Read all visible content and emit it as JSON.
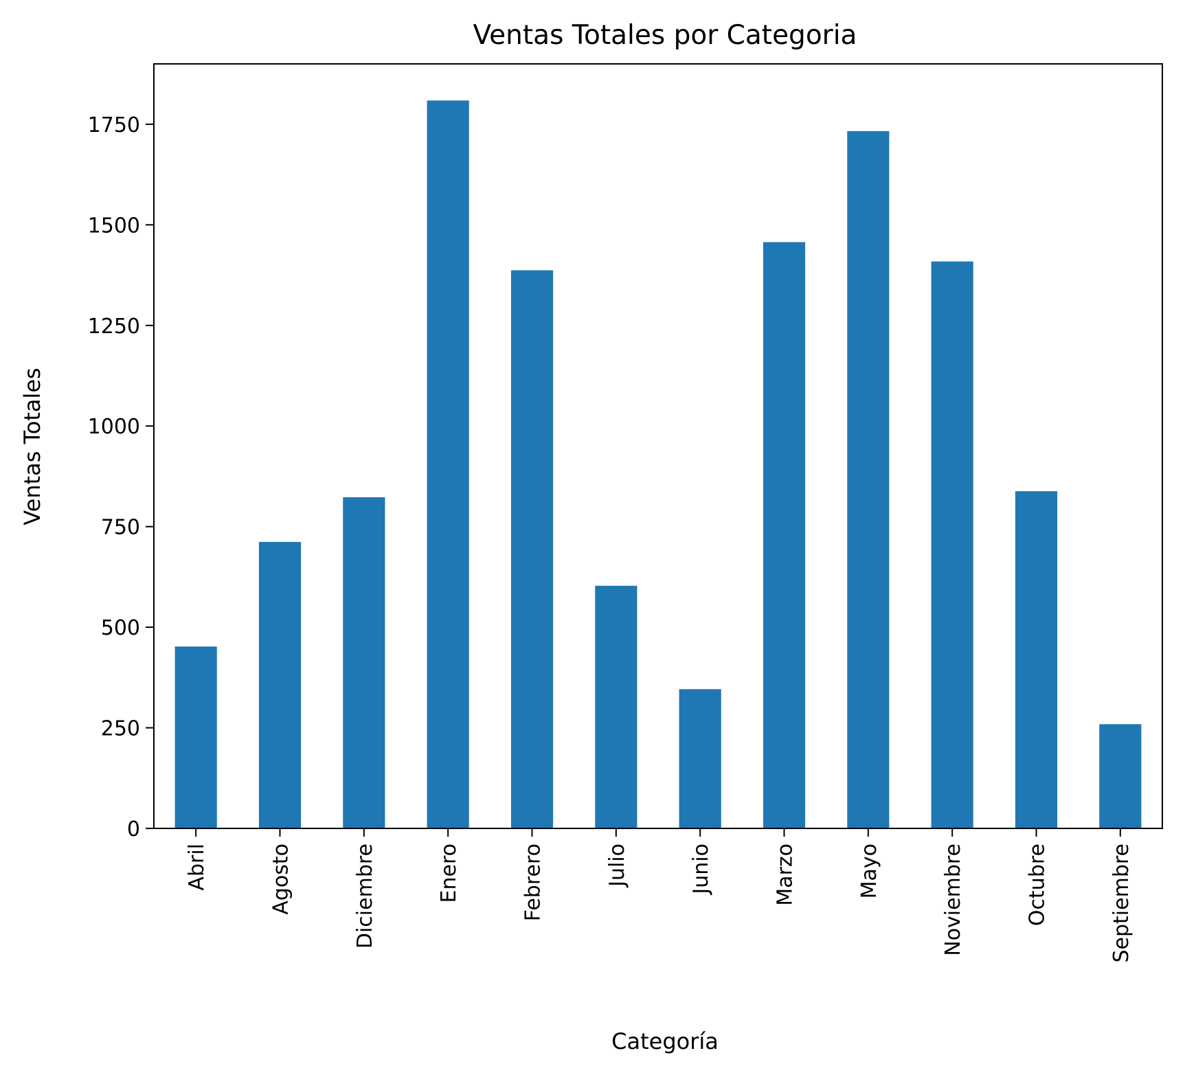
{
  "chart_data": {
    "type": "bar",
    "title": "Ventas Totales por Categoria",
    "xlabel": "Categoría",
    "ylabel": "Ventas Totales",
    "categories": [
      "Abril",
      "Agosto",
      "Diciembre",
      "Enero",
      "Febrero",
      "Julio",
      "Junio",
      "Marzo",
      "Mayo",
      "Noviembre",
      "Octubre",
      "Septiembre"
    ],
    "values": [
      452,
      712,
      823,
      1809,
      1387,
      603,
      346,
      1457,
      1733,
      1409,
      838,
      259
    ],
    "ylim": [
      0,
      1900
    ],
    "yticks": [
      0,
      250,
      500,
      750,
      1000,
      1250,
      1500,
      1750
    ],
    "bar_color": "#1f77b4",
    "grid": false,
    "legend": false
  }
}
